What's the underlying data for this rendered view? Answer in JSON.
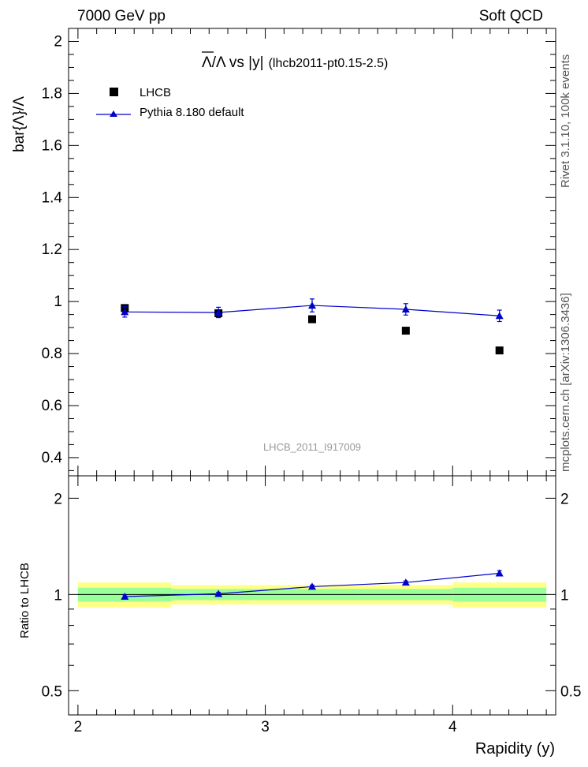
{
  "header": {
    "left": "7000 GeV pp",
    "right": "Soft QCD"
  },
  "side_labels": {
    "rivet": "Rivet 3.1.10,  100k events",
    "mcplots": "mcplots.cern.ch [arXiv:1306.3436]"
  },
  "colors": {
    "mc": "#0000cc",
    "band_inner": "#99ff99",
    "band_outer": "#ffff88",
    "data": "#000000"
  },
  "chart_data": {
    "type": "scatter",
    "title": "Λ/Λ vs |y|",
    "title_bar_symbol": "Λ",
    "title_sep": "/Λ vs |y|",
    "subtitle": "(lhcb2011-pt0.15-2.5)",
    "watermark": "LHCB_2011_I917009",
    "xlabel": "Rapidity (y)",
    "ylabel": "bar{Λ}/Λ",
    "ratio_ylabel": "Ratio to LHCB",
    "xlim": [
      1.95,
      4.55
    ],
    "ylim": [
      0.33,
      2.05
    ],
    "ratio_ylim": [
      0.42,
      2.35
    ],
    "x_ticks": [
      "2",
      "3",
      "4"
    ],
    "y_ticks": [
      "0.4",
      "0.6",
      "0.8",
      "1",
      "1.2",
      "1.4",
      "1.6",
      "1.8",
      "2"
    ],
    "ratio_ticks": [
      "0.5",
      "1",
      "2"
    ],
    "legend": [
      "LHCB",
      "Pythia 8.180 default"
    ],
    "bins": [
      [
        2.0,
        2.5
      ],
      [
        2.5,
        3.0
      ],
      [
        3.0,
        3.5
      ],
      [
        3.5,
        4.0
      ],
      [
        4.0,
        4.5
      ]
    ],
    "x": [
      2.25,
      2.75,
      3.25,
      3.75,
      4.25
    ],
    "series": [
      {
        "name": "LHCB",
        "values": [
          0.975,
          0.955,
          0.932,
          0.888,
          0.812
        ],
        "errors": [
          0.01,
          0.01,
          0.01,
          0.01,
          0.01
        ]
      },
      {
        "name": "Pythia 8.180 default",
        "values": [
          0.96,
          0.958,
          0.985,
          0.97,
          0.945
        ],
        "errors": [
          0.02,
          0.02,
          0.025,
          0.022,
          0.022
        ]
      }
    ],
    "ratio": {
      "values": [
        0.985,
        1.005,
        1.058,
        1.09,
        1.165
      ],
      "errors": [
        0.012,
        0.01,
        0.012,
        0.012,
        0.022
      ],
      "band_inner": [
        0.05,
        0.04,
        0.04,
        0.04,
        0.05
      ],
      "band_outer": [
        0.09,
        0.07,
        0.07,
        0.07,
        0.09
      ]
    }
  }
}
